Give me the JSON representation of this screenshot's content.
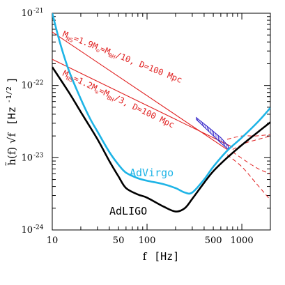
{
  "chart_data": {
    "type": "line",
    "xlabel_main": "f",
    "xlabel_unit": "[Hz]",
    "ylabel_main": "h̃(f) √f",
    "ylabel_unit": "[Hz",
    "ylabel_exp": "-1/2",
    "ylabel_close": "]",
    "xscale": "log",
    "yscale": "log",
    "xlim": [
      10,
      2000
    ],
    "ylim": [
      1e-24,
      1e-21
    ],
    "x_ticks": [
      {
        "value": 10,
        "label": "10"
      },
      {
        "value": 50,
        "label": "50"
      },
      {
        "value": 100,
        "label": "100"
      },
      {
        "value": 500,
        "label": "500"
      },
      {
        "value": 1000,
        "label": "1000"
      }
    ],
    "y_ticks": [
      {
        "value": 1e-24,
        "base": "10",
        "exp": "-24"
      },
      {
        "value": 1e-23,
        "base": "10",
        "exp": "-23"
      },
      {
        "value": 1e-22,
        "base": "10",
        "exp": "-22"
      },
      {
        "value": 1e-21,
        "base": "10",
        "exp": "-21"
      }
    ],
    "series": [
      {
        "name": "AdLIGO",
        "color": "#000000",
        "x": [
          10,
          15,
          20,
          30,
          40,
          50,
          60,
          80,
          100,
          150,
          200,
          250,
          300,
          400,
          500,
          700,
          1000,
          1500,
          2000
        ],
        "y": [
          1.8e-22,
          8e-23,
          4.3e-23,
          1.8e-23,
          9e-24,
          5.5e-24,
          3.8e-24,
          3.1e-24,
          2.8e-24,
          2.1e-24,
          1.8e-24,
          2e-24,
          2.7e-24,
          4.5e-24,
          6.5e-24,
          1e-23,
          1.5e-23,
          2.3e-23,
          3.1e-23
        ]
      },
      {
        "name": "AdVirgo",
        "color": "#1eb4e6",
        "x": [
          10,
          12,
          15,
          20,
          25,
          30,
          40,
          50,
          60,
          80,
          100,
          150,
          200,
          250,
          300,
          400,
          500,
          700,
          1000,
          1500,
          2000
        ],
        "y": [
          1e-21,
          4e-22,
          1.6e-22,
          6.5e-23,
          3.5e-23,
          2.3e-23,
          1.2e-23,
          8e-24,
          6.2e-24,
          5.2e-24,
          4.8e-24,
          4.3e-24,
          3.8e-24,
          3.3e-24,
          3.3e-24,
          5e-24,
          7.5e-24,
          1.25e-23,
          1.9e-23,
          3.2e-23,
          4.9e-23
        ]
      }
    ],
    "signals": [
      {
        "label": "M_NS=1.9M_⊙=M_BH/10, D=100 Mpc",
        "label_parts": {
          "M": "M",
          "sub_ns": "NS",
          "mid1": "=1.9M",
          "sub_sun": "⊙",
          "mid2": "=M",
          "sub_bh": "BH",
          "tail": "/10, D=100 Mpc"
        },
        "color": "#e02020",
        "solid": {
          "x": [
            10,
            700
          ],
          "y": [
            5.5e-22,
            1.3e-23
          ]
        },
        "dashed_upper": {
          "x": [
            700,
            1000,
            1400,
            2000
          ],
          "y": [
            1.8e-23,
            2e-23,
            2e-23,
            2.1e-23
          ]
        },
        "dashed_lower": {
          "x": [
            700,
            1000,
            1400,
            2000
          ],
          "y": [
            1.1e-23,
            7.5e-24,
            4.5e-24,
            2.6e-24
          ]
        }
      },
      {
        "label": "M_NS=1.2M_⊙=M_BH/3, D=100 Mpc",
        "label_parts": {
          "M": "M",
          "sub_ns": "NS",
          "mid1": "=1.2M",
          "sub_sun": "⊙",
          "mid2": "=M",
          "sub_bh": "BH",
          "tail": "/3, D=100 Mpc"
        },
        "color": "#e02020",
        "solid": {
          "x": [
            10,
            800
          ],
          "y": [
            2.3e-22,
            1.4e-23
          ]
        },
        "dashed_upper": {
          "x": [
            800,
            1100,
            1500,
            2000
          ],
          "y": [
            1.3e-23,
            1.6e-23,
            1.8e-23,
            2e-23
          ]
        },
        "dashed_lower": {
          "x": [
            800,
            1100,
            1500,
            2000
          ],
          "y": [
            1.2e-23,
            9e-24,
            7e-24,
            6e-24
          ]
        }
      }
    ],
    "band": {
      "color": "#3020c8",
      "upper": {
        "x": [
          330,
          450,
          600,
          720
        ],
        "y": [
          3.6e-23,
          2.6e-23,
          1.9e-23,
          1.45e-23
        ]
      },
      "lower": {
        "x": [
          330,
          450,
          600,
          720
        ],
        "y": [
          3.4e-23,
          2.3e-23,
          1.6e-23,
          1.3e-23
        ]
      }
    },
    "annotations": {
      "advirgo": "AdVirgo",
      "adligo": "AdLIGO"
    }
  }
}
